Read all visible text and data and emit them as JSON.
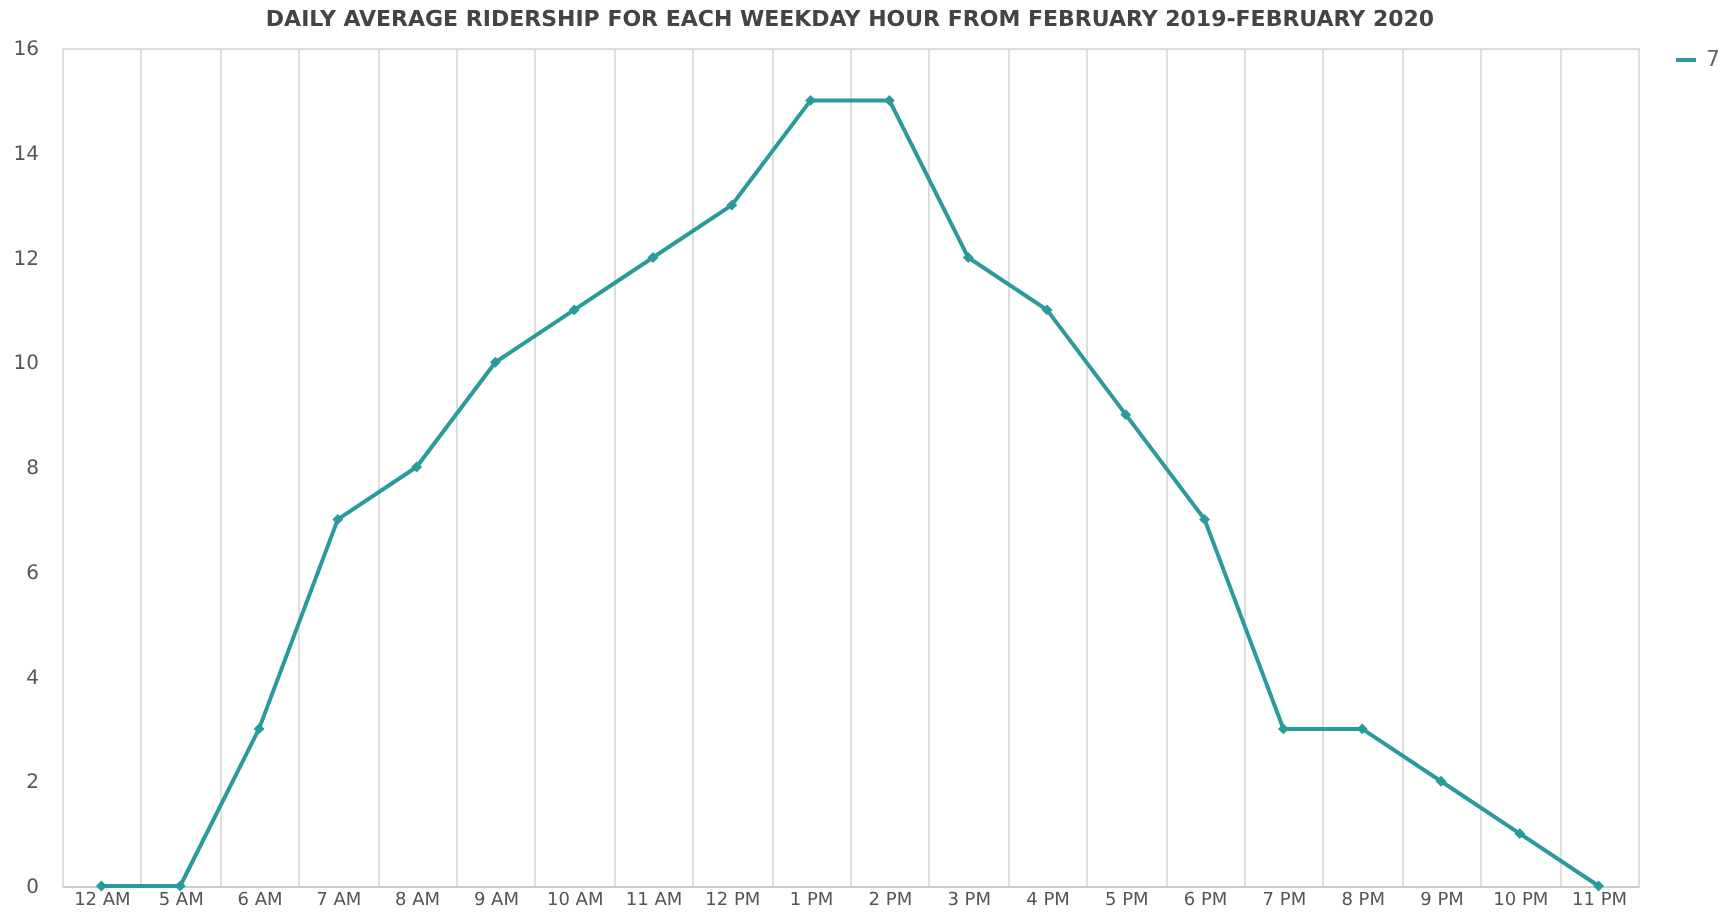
{
  "chart_data": {
    "type": "line",
    "title": "DAILY AVERAGE RIDERSHIP FOR EACH WEEKDAY HOUR FROM FEBRUARY 2019-FEBRUARY 2020",
    "categories": [
      "12 AM",
      "5 AM",
      "6 AM",
      "7 AM",
      "8 AM",
      "9 AM",
      "10 AM",
      "11 AM",
      "12 PM",
      "1 PM",
      "2 PM",
      "3 PM",
      "4 PM",
      "5 PM",
      "6 PM",
      "7 PM",
      "8 PM",
      "9 PM",
      "10 PM",
      "11 PM"
    ],
    "series": [
      {
        "name": "7",
        "color": "#2a9a9c",
        "values": [
          0,
          0,
          3,
          7,
          8,
          10,
          11,
          12,
          13,
          15,
          15,
          12,
          11,
          9,
          7,
          3,
          3,
          2,
          1,
          0
        ]
      }
    ],
    "ylim": [
      0,
      16
    ],
    "yticks": [
      0,
      2,
      4,
      6,
      8,
      10,
      12,
      14,
      16
    ],
    "grid": "x",
    "legend": "right",
    "marker": "diamond",
    "line_style": "solid"
  }
}
